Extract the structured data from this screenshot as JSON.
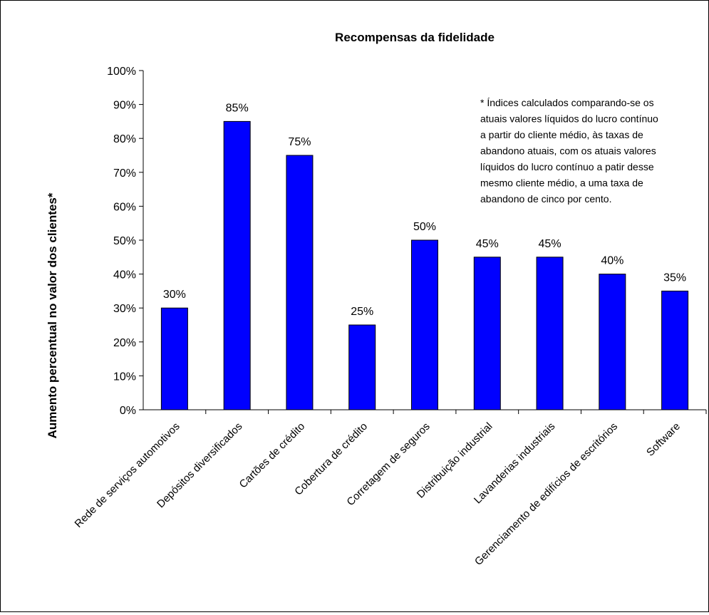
{
  "chart_data": {
    "type": "bar",
    "title": "Recompensas da fidelidade",
    "xlabel": "",
    "ylabel": "Aumento percentual no valor dos clientes*",
    "ylim": [
      0,
      100
    ],
    "y_ticks": [
      "0%",
      "10%",
      "20%",
      "30%",
      "40%",
      "50%",
      "60%",
      "70%",
      "80%",
      "90%",
      "100%"
    ],
    "categories": [
      "Rede de serviços automotivos",
      "Depósitos diversificados",
      "Cartões de crédito",
      "Cobertura de crédito",
      "Corretagem de seguros",
      "Distribuição industrial",
      "Lavanderias industriais",
      "Gerenciamento de edifícios de escritórios",
      "Software"
    ],
    "values": [
      30,
      85,
      75,
      25,
      50,
      45,
      45,
      40,
      35
    ],
    "data_labels": [
      "30%",
      "85%",
      "75%",
      "25%",
      "50%",
      "45%",
      "45%",
      "40%",
      "35%"
    ],
    "bar_color": "#0000FF",
    "grid": false,
    "legend": "none",
    "annotation": [
      "* Índices calculados comparando-se os",
      "atuais valores líquidos do lucro contínuo",
      "a partir do cliente médio, às taxas de",
      "abandono atuais, com os atuais valores",
      "líquidos do lucro contínuo a patir desse",
      "mesmo cliente médio, a uma taxa de",
      "abandono de cinco por cento."
    ]
  }
}
